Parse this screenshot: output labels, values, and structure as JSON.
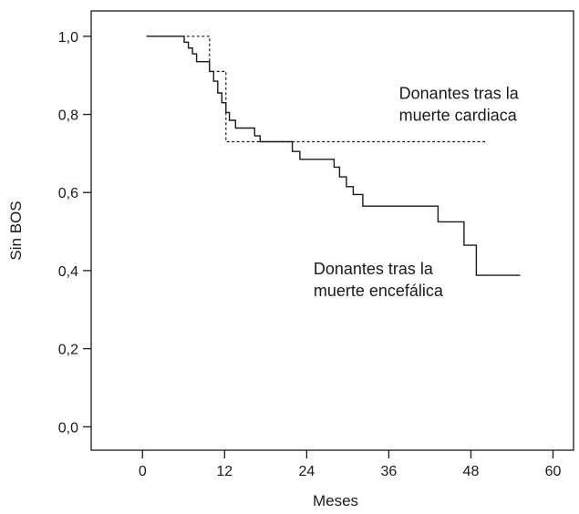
{
  "chart_data": {
    "type": "line",
    "xlabel": "Meses",
    "ylabel": "Sin BOS",
    "xlim": [
      -7.5,
      63
    ],
    "ylim": [
      -0.06,
      1.065
    ],
    "xticks": [
      {
        "value": 0,
        "label": "0"
      },
      {
        "value": 12,
        "label": "12"
      },
      {
        "value": 24,
        "label": "24"
      },
      {
        "value": 36,
        "label": "36"
      },
      {
        "value": 48,
        "label": "48"
      },
      {
        "value": 60,
        "label": "60"
      }
    ],
    "yticks": [
      {
        "value": 0.0,
        "label": "0,0"
      },
      {
        "value": 0.2,
        "label": "0,2"
      },
      {
        "value": 0.4,
        "label": "0,4"
      },
      {
        "value": 0.6,
        "label": "0,6"
      },
      {
        "value": 0.8,
        "label": "0,8"
      },
      {
        "value": 1.0,
        "label": "1,0"
      }
    ],
    "grid": false,
    "legend": "none",
    "series": [
      {
        "style": "solid",
        "color": "#1a1a1a",
        "points": [
          [
            0.6,
            1.0
          ],
          [
            6.1,
            1.0
          ],
          [
            6.1,
            0.985
          ],
          [
            6.7,
            0.985
          ],
          [
            6.7,
            0.97
          ],
          [
            7.3,
            0.97
          ],
          [
            7.3,
            0.955
          ],
          [
            7.9,
            0.955
          ],
          [
            7.9,
            0.935
          ],
          [
            9.8,
            0.935
          ],
          [
            9.8,
            0.91
          ],
          [
            10.4,
            0.91
          ],
          [
            10.4,
            0.885
          ],
          [
            11.0,
            0.885
          ],
          [
            11.0,
            0.855
          ],
          [
            11.6,
            0.855
          ],
          [
            11.6,
            0.83
          ],
          [
            12.2,
            0.83
          ],
          [
            12.2,
            0.805
          ],
          [
            12.7,
            0.805
          ],
          [
            12.7,
            0.785
          ],
          [
            13.6,
            0.785
          ],
          [
            13.6,
            0.765
          ],
          [
            16.4,
            0.765
          ],
          [
            16.4,
            0.745
          ],
          [
            17.2,
            0.745
          ],
          [
            17.2,
            0.73
          ],
          [
            21.9,
            0.73
          ],
          [
            21.9,
            0.705
          ],
          [
            23.0,
            0.705
          ],
          [
            23.0,
            0.685
          ],
          [
            28.0,
            0.685
          ],
          [
            28.0,
            0.665
          ],
          [
            28.8,
            0.665
          ],
          [
            28.8,
            0.64
          ],
          [
            29.8,
            0.64
          ],
          [
            29.8,
            0.615
          ],
          [
            30.8,
            0.615
          ],
          [
            30.8,
            0.595
          ],
          [
            32.2,
            0.595
          ],
          [
            32.2,
            0.565
          ],
          [
            43.2,
            0.565
          ],
          [
            43.2,
            0.525
          ],
          [
            47.0,
            0.525
          ],
          [
            47.0,
            0.465
          ],
          [
            48.8,
            0.465
          ],
          [
            48.8,
            0.388
          ],
          [
            55.2,
            0.388
          ]
        ]
      },
      {
        "style": "dashed",
        "color": "#1a1a1a",
        "points": [
          [
            0.6,
            1.0
          ],
          [
            9.8,
            1.0
          ],
          [
            9.8,
            0.91
          ],
          [
            12.2,
            0.91
          ],
          [
            12.2,
            0.73
          ],
          [
            50.1,
            0.73
          ]
        ]
      }
    ],
    "annotations": [
      {
        "lines": [
          "Donantes tras la",
          "muerte cardiaca"
        ],
        "x": 37.5,
        "y": 0.84
      },
      {
        "lines": [
          "Donantes tras la",
          "muerte encefálica"
        ],
        "x": 25.0,
        "y": 0.39
      }
    ]
  }
}
